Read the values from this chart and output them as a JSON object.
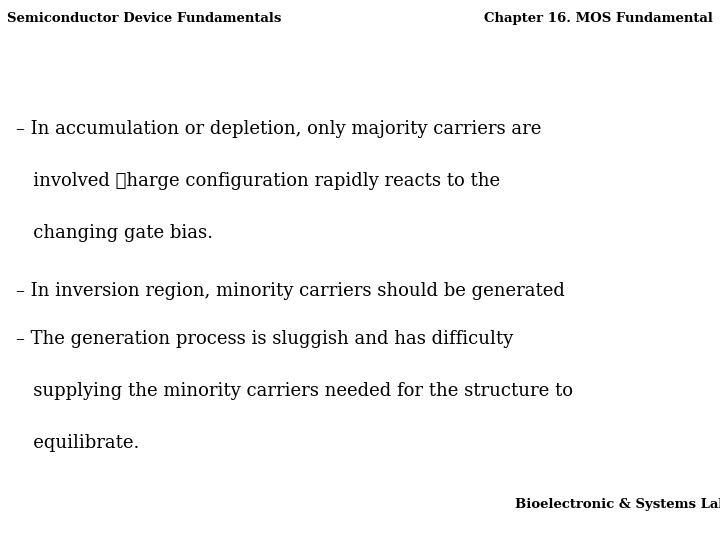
{
  "header_left": "Semiconductor Device Fundamentals",
  "header_right": "Chapter 16. MOS Fundamental",
  "bullet1_line1": "– In accumulation or depletion, only majority carriers are",
  "bullet1_line2": "   involved ☐harge configuration rapidly reacts to the",
  "bullet1_line3": "   changing gate bias.",
  "bullet2": "– In inversion region, minority carriers should be generated",
  "bullet3_line1": "– The generation process is sluggish and has difficulty",
  "bullet3_line2": "   supplying the minority carriers needed for the structure to",
  "bullet3_line3": "   equilibrate.",
  "footer": "Bioelectronic & Systems Lab.",
  "bg_color": "#ffffff",
  "text_color": "#000000",
  "header_fontsize": 9.5,
  "body_fontsize": 13.0,
  "footer_fontsize": 9.5
}
